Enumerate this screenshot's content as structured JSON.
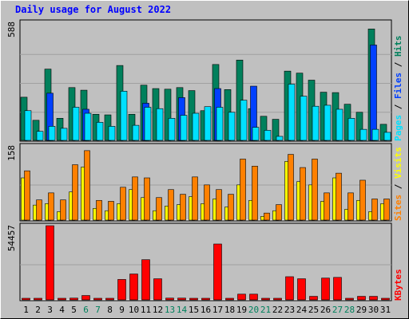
{
  "title": "Daily usage for August 2022",
  "colors": {
    "hits": "#00805c",
    "files": "#0040ff",
    "pages": "#00e0ff",
    "visits": "#ffff00",
    "sites": "#ff8000",
    "kbytes": "#ff0000",
    "weekend_day": "#00805c",
    "weekday": "#000000"
  },
  "chart_data": [
    {
      "type": "bar",
      "title": "Daily usage for August 2022",
      "categories": [
        "1",
        "2",
        "3",
        "4",
        "5",
        "6",
        "7",
        "8",
        "9",
        "10",
        "11",
        "12",
        "13",
        "14",
        "15",
        "16",
        "17",
        "18",
        "19",
        "20",
        "21",
        "22",
        "23",
        "24",
        "25",
        "26",
        "27",
        "28",
        "29",
        "30",
        "31"
      ],
      "weekend_days": [
        "6",
        "7",
        "13",
        "14",
        "20",
        "21",
        "27",
        "28"
      ],
      "ymax_label": "588",
      "ylim": [
        0,
        588
      ],
      "legend": [
        "Pages",
        "/",
        "Files",
        "/",
        "Hits"
      ],
      "series": [
        {
          "name": "Hits",
          "values": [
            215,
            100,
            355,
            110,
            263,
            250,
            130,
            127,
            373,
            130,
            275,
            258,
            255,
            263,
            248,
            148,
            378,
            253,
            400,
            158,
            120,
            105,
            345,
            335,
            300,
            240,
            238,
            180,
            140,
            555,
            80
          ]
        },
        {
          "name": "Files",
          "values": [
            0,
            0,
            235,
            0,
            0,
            155,
            0,
            0,
            0,
            0,
            185,
            0,
            0,
            213,
            0,
            0,
            258,
            0,
            0,
            270,
            0,
            0,
            0,
            0,
            0,
            0,
            0,
            0,
            0,
            475,
            0
          ]
        },
        {
          "name": "Pages",
          "values": [
            148,
            45,
            70,
            60,
            165,
            135,
            90,
            70,
            245,
            75,
            165,
            158,
            110,
            125,
            135,
            168,
            165,
            140,
            200,
            65,
            50,
            20,
            280,
            220,
            170,
            175,
            155,
            110,
            55,
            55,
            40
          ]
        }
      ]
    },
    {
      "type": "bar",
      "categories": [
        "1",
        "2",
        "3",
        "4",
        "5",
        "6",
        "7",
        "8",
        "9",
        "10",
        "11",
        "12",
        "13",
        "14",
        "15",
        "16",
        "17",
        "18",
        "19",
        "20",
        "21",
        "22",
        "23",
        "24",
        "25",
        "26",
        "27",
        "28",
        "29",
        "30",
        "31"
      ],
      "ymax_label": "158",
      "ylim": [
        0,
        158
      ],
      "legend": [
        "Sites",
        "/",
        "Visits"
      ],
      "series": [
        {
          "name": "Visits",
          "values": [
            90,
            32,
            35,
            18,
            60,
            113,
            25,
            20,
            35,
            65,
            48,
            20,
            30,
            33,
            50,
            35,
            45,
            28,
            75,
            42,
            8,
            20,
            125,
            82,
            75,
            40,
            90,
            23,
            42,
            18,
            35
          ]
        },
        {
          "name": "Sites",
          "values": [
            105,
            43,
            58,
            43,
            118,
            148,
            42,
            40,
            70,
            92,
            90,
            48,
            65,
            55,
            92,
            75,
            65,
            55,
            130,
            115,
            15,
            33,
            140,
            112,
            130,
            58,
            100,
            58,
            85,
            45,
            45
          ]
        }
      ]
    },
    {
      "type": "bar",
      "categories": [
        "1",
        "2",
        "3",
        "4",
        "5",
        "6",
        "7",
        "8",
        "9",
        "10",
        "11",
        "12",
        "13",
        "14",
        "15",
        "16",
        "17",
        "18",
        "19",
        "20",
        "21",
        "22",
        "23",
        "24",
        "25",
        "26",
        "27",
        "28",
        "29",
        "30",
        "31"
      ],
      "ymax_label": "54457",
      "ylim": [
        0,
        54457
      ],
      "legend": [
        "KBytes"
      ],
      "series": [
        {
          "name": "KBytes",
          "values": [
            700,
            700,
            54457,
            700,
            1300,
            3200,
            700,
            700,
            15000,
            19000,
            29500,
            15500,
            1300,
            1300,
            700,
            700,
            41000,
            700,
            4200,
            4200,
            700,
            700,
            17000,
            15500,
            2600,
            16000,
            16500,
            700,
            2600,
            2600,
            700
          ]
        }
      ]
    }
  ]
}
